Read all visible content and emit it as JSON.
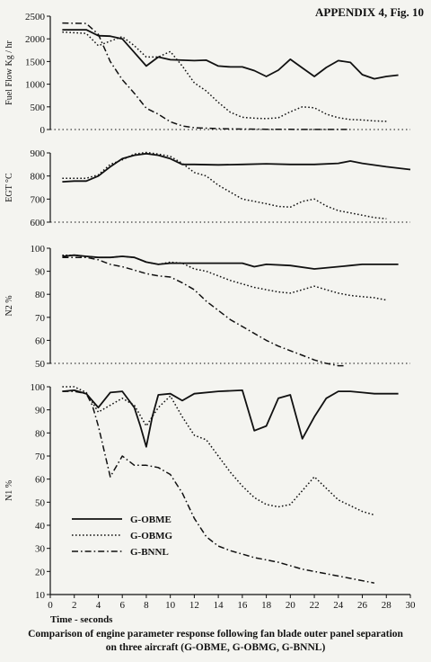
{
  "header": {
    "appendix_label": "APPENDIX 4, Fig. 10"
  },
  "caption": {
    "line1": "Comparison of engine parameter response following fan blade outer panel separation",
    "line2": "on three aircraft (G-OBME, G-OBMG, G-BNNL)"
  },
  "x_axis_label": "Time -  seconds",
  "legend": {
    "entries": [
      {
        "label": "G-OBME",
        "style": "solid"
      },
      {
        "label": "G-OBMG",
        "style": "dotted"
      },
      {
        "label": "G-BNNL",
        "style": "dashdot"
      }
    ]
  },
  "chart_data": [
    {
      "type": "line",
      "ylabel": "Fuel Flow  Kg / hr",
      "xlim": [
        0,
        30
      ],
      "ylim": [
        0,
        2500
      ],
      "yticks": [
        0,
        500,
        1000,
        1500,
        2000,
        2500
      ],
      "grid": false,
      "series": [
        {
          "name": "G-OBME",
          "x": [
            1,
            3,
            4,
            5,
            6,
            7,
            8,
            9,
            10,
            11,
            12,
            13,
            14,
            15,
            16,
            17,
            18,
            19,
            20,
            21,
            22,
            23,
            24,
            25,
            26,
            27,
            28,
            29
          ],
          "y": [
            2200,
            2200,
            2070,
            2060,
            2000,
            1700,
            1400,
            1600,
            1540,
            1530,
            1520,
            1530,
            1400,
            1380,
            1380,
            1300,
            1170,
            1310,
            1550,
            1360,
            1170,
            1370,
            1520,
            1480,
            1210,
            1120,
            1170,
            1200
          ]
        },
        {
          "name": "G-OBMG",
          "x": [
            1,
            3,
            4,
            5,
            6,
            7,
            8,
            9,
            10,
            11,
            12,
            13,
            14,
            15,
            16,
            17,
            18,
            19,
            20,
            21,
            22,
            23,
            24,
            25,
            26,
            27,
            28
          ],
          "y": [
            2150,
            2120,
            1850,
            1950,
            2050,
            1850,
            1600,
            1600,
            1720,
            1400,
            1030,
            850,
            600,
            380,
            270,
            250,
            240,
            260,
            390,
            500,
            480,
            340,
            260,
            220,
            210,
            190,
            180
          ]
        },
        {
          "name": "G-BNNL",
          "x": [
            1,
            3,
            4,
            5,
            6,
            7,
            8,
            9,
            10,
            11,
            12,
            14,
            16,
            18,
            20,
            22,
            24,
            25
          ],
          "y": [
            2350,
            2340,
            2100,
            1500,
            1100,
            800,
            470,
            340,
            170,
            80,
            40,
            20,
            10,
            5,
            3,
            2,
            2,
            2
          ]
        }
      ]
    },
    {
      "type": "line",
      "ylabel": "EGT °C",
      "xlim": [
        0,
        30
      ],
      "ylim": [
        600,
        900
      ],
      "yticks": [
        600,
        700,
        800,
        900
      ],
      "grid": false,
      "series": [
        {
          "name": "G-OBME",
          "x": [
            1,
            2,
            3,
            4,
            5,
            6,
            7,
            8,
            9,
            10,
            11,
            12,
            14,
            16,
            18,
            20,
            22,
            24,
            25,
            26,
            28,
            30
          ],
          "y": [
            775,
            778,
            778,
            800,
            840,
            875,
            890,
            897,
            890,
            875,
            850,
            850,
            848,
            850,
            853,
            850,
            850,
            855,
            865,
            855,
            840,
            828
          ]
        },
        {
          "name": "G-OBMG",
          "x": [
            1,
            2,
            3,
            4,
            5,
            6,
            7,
            8,
            9,
            10,
            11,
            12,
            13,
            14,
            15,
            16,
            17,
            18,
            19,
            20,
            21,
            22,
            23,
            24,
            25,
            26,
            27,
            28
          ],
          "y": [
            790,
            790,
            790,
            805,
            850,
            870,
            895,
            902,
            895,
            885,
            855,
            815,
            800,
            760,
            730,
            700,
            690,
            680,
            668,
            665,
            690,
            700,
            670,
            650,
            640,
            630,
            620,
            615
          ]
        }
      ]
    },
    {
      "type": "line",
      "ylabel": "N2 %",
      "xlim": [
        0,
        30
      ],
      "ylim": [
        50,
        100
      ],
      "yticks": [
        50,
        60,
        70,
        80,
        90,
        100
      ],
      "grid": false,
      "series": [
        {
          "name": "G-OBME",
          "x": [
            1,
            2,
            3,
            4,
            5,
            6,
            7,
            8,
            9,
            10,
            11,
            12,
            14,
            16,
            17,
            18,
            20,
            22,
            24,
            25,
            26,
            28,
            29
          ],
          "y": [
            96.5,
            97,
            96.5,
            96,
            96,
            96.5,
            96,
            94,
            93,
            93.5,
            93.5,
            93.5,
            93.5,
            93.5,
            92,
            93,
            92.5,
            91,
            92,
            92.5,
            93,
            93,
            93
          ]
        },
        {
          "name": "G-OBMG",
          "x": [
            1,
            2,
            3,
            4,
            5,
            6,
            7,
            8,
            9,
            10,
            11,
            12,
            13,
            14,
            15,
            16,
            17,
            18,
            19,
            20,
            21,
            22,
            23,
            24,
            25,
            26,
            27,
            28
          ],
          "y": [
            97,
            97,
            96.5,
            96,
            96,
            96.5,
            96,
            94,
            93,
            94,
            93.5,
            91,
            90,
            88,
            86,
            84.5,
            83,
            82,
            81,
            80.5,
            82,
            83.5,
            82,
            80.5,
            79.5,
            79,
            78.5,
            77.5
          ]
        },
        {
          "name": "G-BNNL",
          "x": [
            1,
            2,
            3,
            4,
            5,
            6,
            7,
            8,
            9,
            10,
            11,
            12,
            13,
            14,
            15,
            16,
            17,
            18,
            19,
            20,
            21,
            22,
            23,
            24,
            24.5
          ],
          "y": [
            96,
            96,
            96,
            95,
            93,
            92,
            90.5,
            89,
            88,
            87.5,
            85,
            82,
            77,
            73,
            69,
            66,
            63,
            60,
            57.5,
            55.5,
            53.5,
            51.5,
            50,
            49,
            49
          ]
        }
      ]
    },
    {
      "type": "line",
      "ylabel": "N1 %",
      "xlim": [
        0,
        30
      ],
      "ylim": [
        10,
        100
      ],
      "yticks": [
        10,
        20,
        30,
        40,
        50,
        60,
        70,
        80,
        90,
        100
      ],
      "xticks": [
        0,
        2,
        4,
        6,
        8,
        10,
        12,
        14,
        16,
        18,
        20,
        22,
        24,
        26,
        28,
        30
      ],
      "grid": false,
      "series": [
        {
          "name": "G-OBME",
          "x": [
            1,
            2,
            3,
            4,
            5,
            6,
            7,
            7.5,
            8,
            8.5,
            9,
            10,
            11,
            12,
            14,
            16,
            17,
            18,
            19,
            20,
            21,
            22,
            23,
            24,
            25,
            26,
            27,
            28,
            29
          ],
          "y": [
            98,
            98.5,
            97,
            91,
            97.5,
            98,
            91,
            83,
            74,
            87,
            96.5,
            97,
            94,
            97,
            98,
            98.5,
            81,
            83,
            95,
            96.5,
            77.5,
            87,
            95,
            98,
            98,
            97.5,
            97,
            97,
            97
          ]
        },
        {
          "name": "G-OBMG",
          "x": [
            1,
            2,
            3,
            4,
            5,
            6,
            7,
            8,
            9,
            10,
            11,
            12,
            13,
            14,
            15,
            16,
            17,
            18,
            19,
            20,
            21,
            22,
            23,
            24,
            25,
            26,
            27
          ],
          "y": [
            100,
            100,
            97.5,
            89,
            92,
            95,
            92,
            83,
            91,
            96,
            87,
            79,
            77,
            70,
            63,
            57,
            52,
            49,
            48,
            49,
            55,
            61,
            56,
            51,
            48.5,
            46,
            44.5
          ]
        },
        {
          "name": "G-BNNL",
          "x": [
            1,
            2,
            3,
            3.5,
            4,
            5,
            6,
            7,
            8,
            9,
            10,
            11,
            12,
            13,
            14,
            15,
            17,
            19,
            21,
            23,
            25,
            27
          ],
          "y": [
            98,
            98,
            97,
            92,
            83,
            61,
            70,
            66,
            66,
            65,
            62,
            54,
            43,
            35,
            31,
            29,
            26,
            24,
            21,
            19,
            17,
            15
          ]
        }
      ]
    }
  ]
}
